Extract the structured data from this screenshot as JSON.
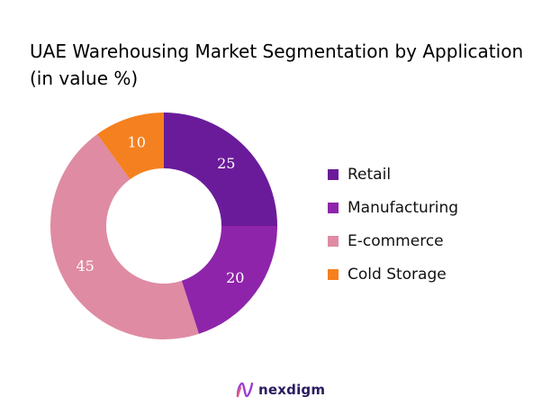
{
  "chart_data": {
    "type": "pie",
    "variant": "donut",
    "title_lines": [
      "UAE Warehousing Market Segmentation by Application",
      "(in value %)"
    ],
    "slices": [
      {
        "name": "Retail",
        "value": 25,
        "color": "#6a1b9a"
      },
      {
        "name": "Manufacturing",
        "value": 20,
        "color": "#8e24aa"
      },
      {
        "name": "E-commerce",
        "value": 45,
        "color": "#df8ba3"
      },
      {
        "name": "Cold Storage",
        "value": 10,
        "color": "#f5801f"
      }
    ],
    "legend_position": "right",
    "start_angle_deg": 0,
    "direction": "clockwise"
  },
  "branding": {
    "logo_text": "nexdigm",
    "logo_icon": "nexdigm-logo-icon"
  }
}
